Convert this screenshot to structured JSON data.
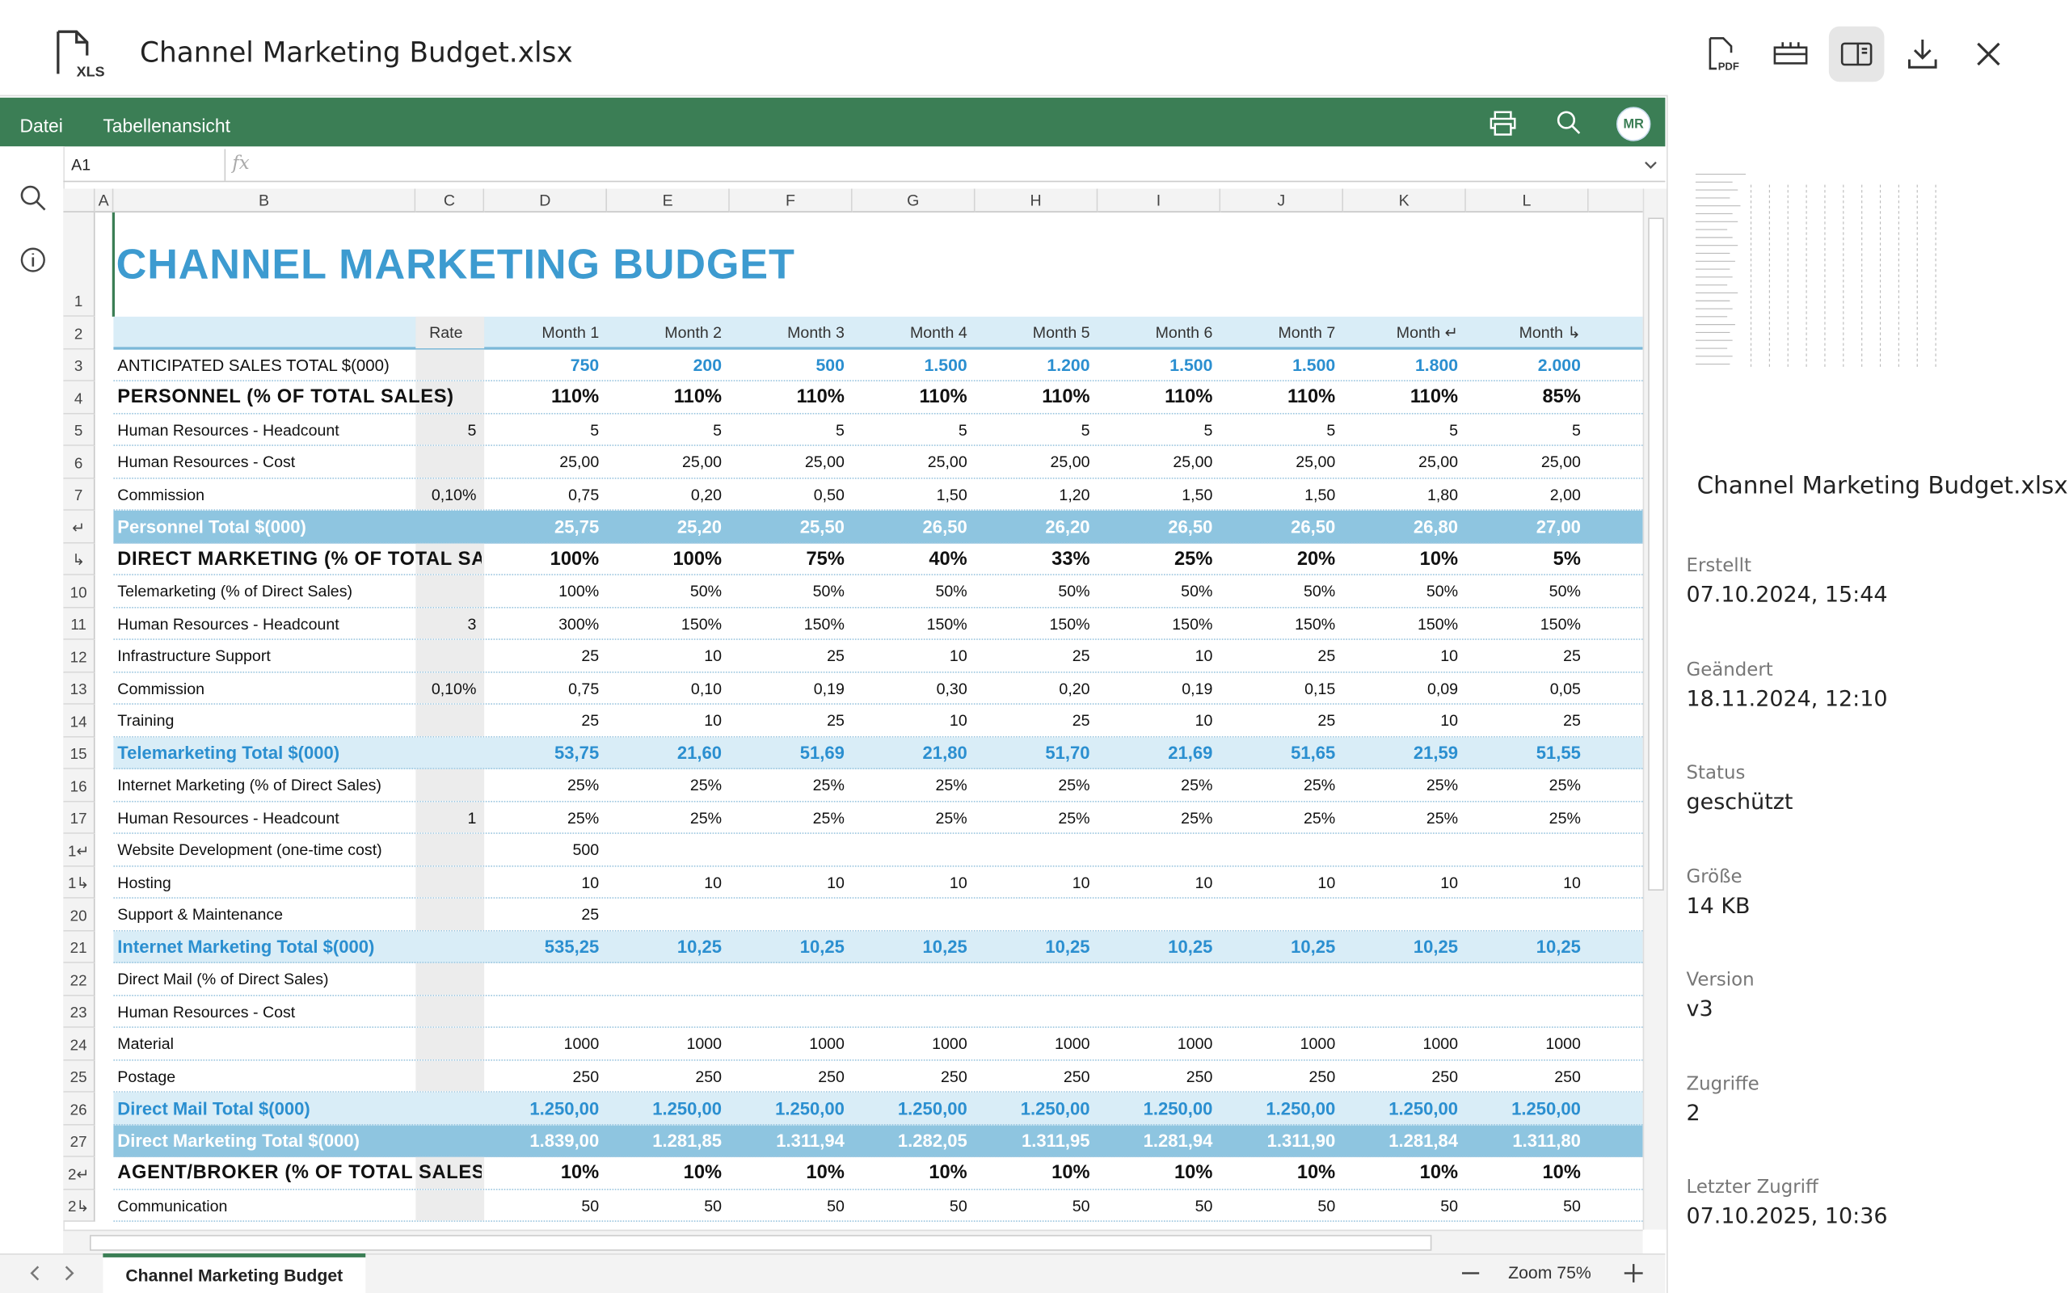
{
  "header": {
    "file_icon_label": "XLS",
    "file_name": "Channel Marketing Budget.xlsx",
    "pdf_label": "PDF"
  },
  "menu": [
    "Datei",
    "Tabellenansicht"
  ],
  "avatar": "MR",
  "formula_bar": {
    "name_box": "A1",
    "fx": "fx"
  },
  "sheet": {
    "columns": [
      "A",
      "B",
      "C",
      "D",
      "E",
      "F",
      "G",
      "H",
      "I",
      "J",
      "K",
      "L"
    ],
    "rows": [
      [
        "1",
        "CHANNEL MARKETING BUDGET",
        null,
        null,
        null,
        null,
        null,
        null,
        null,
        null,
        null,
        null
      ],
      [
        "2",
        null,
        "Rate",
        "Month 1",
        "Month 2",
        "Month 3",
        "Month 4",
        "Month 5",
        "Month 6",
        "Month 7",
        "Month ↵",
        "Month ↳"
      ],
      [
        "3",
        "ANTICIPATED SALES TOTAL $(000)",
        null,
        "750",
        "200",
        "500",
        "1.500",
        "1.200",
        "1.500",
        "1.500",
        "1.800",
        "2.000"
      ],
      [
        "4",
        "PERSONNEL (% OF TOTAL SALES)",
        null,
        "110%",
        "110%",
        "110%",
        "110%",
        "110%",
        "110%",
        "110%",
        "110%",
        "85%"
      ],
      [
        "5",
        "Human Resources - Headcount",
        "5",
        "5",
        "5",
        "5",
        "5",
        "5",
        "5",
        "5",
        "5",
        "5"
      ],
      [
        "6",
        "Human Resources - Cost",
        null,
        "25,00",
        "25,00",
        "25,00",
        "25,00",
        "25,00",
        "25,00",
        "25,00",
        "25,00",
        "25,00"
      ],
      [
        "7",
        "Commission",
        "0,10%",
        "0,75",
        "0,20",
        "0,50",
        "1,50",
        "1,20",
        "1,50",
        "1,50",
        "1,80",
        "2,00"
      ],
      [
        "↵",
        "Personnel Total $(000)",
        null,
        "25,75",
        "25,20",
        "25,50",
        "26,50",
        "26,20",
        "26,50",
        "26,50",
        "26,80",
        "27,00"
      ],
      [
        "↳",
        "DIRECT MARKETING (% OF TOTAL SA",
        null,
        "100%",
        "100%",
        "75%",
        "40%",
        "33%",
        "25%",
        "20%",
        "10%",
        "5%"
      ],
      [
        "10",
        "Telemarketing (% of Direct Sales)",
        null,
        "100%",
        "50%",
        "50%",
        "50%",
        "50%",
        "50%",
        "50%",
        "50%",
        "50%"
      ],
      [
        "11",
        "Human Resources - Headcount",
        "3",
        "300%",
        "150%",
        "150%",
        "150%",
        "150%",
        "150%",
        "150%",
        "150%",
        "150%"
      ],
      [
        "12",
        "Infrastructure Support",
        null,
        "25",
        "10",
        "25",
        "10",
        "25",
        "10",
        "25",
        "10",
        "25"
      ],
      [
        "13",
        "Commission",
        "0,10%",
        "0,75",
        "0,10",
        "0,19",
        "0,30",
        "0,20",
        "0,19",
        "0,15",
        "0,09",
        "0,05"
      ],
      [
        "14",
        "Training",
        null,
        "25",
        "10",
        "25",
        "10",
        "25",
        "10",
        "25",
        "10",
        "25"
      ],
      [
        "15",
        "Telemarketing Total $(000)",
        null,
        "53,75",
        "21,60",
        "51,69",
        "21,80",
        "51,70",
        "21,69",
        "51,65",
        "21,59",
        "51,55"
      ],
      [
        "16",
        "Internet Marketing (% of Direct Sales)",
        null,
        "25%",
        "25%",
        "25%",
        "25%",
        "25%",
        "25%",
        "25%",
        "25%",
        "25%"
      ],
      [
        "17",
        "Human Resources - Headcount",
        "1",
        "25%",
        "25%",
        "25%",
        "25%",
        "25%",
        "25%",
        "25%",
        "25%",
        "25%"
      ],
      [
        "1↵",
        "Website Development (one-time cost)",
        null,
        "500",
        null,
        null,
        null,
        null,
        null,
        null,
        null,
        null
      ],
      [
        "1↳",
        "Hosting",
        null,
        "10",
        "10",
        "10",
        "10",
        "10",
        "10",
        "10",
        "10",
        "10"
      ],
      [
        "20",
        "Support & Maintenance",
        null,
        "25",
        null,
        null,
        null,
        null,
        null,
        null,
        null,
        null
      ],
      [
        "21",
        "Internet Marketing Total $(000)",
        null,
        "535,25",
        "10,25",
        "10,25",
        "10,25",
        "10,25",
        "10,25",
        "10,25",
        "10,25",
        "10,25"
      ],
      [
        "22",
        "Direct Mail (% of Direct Sales)",
        null,
        null,
        null,
        null,
        null,
        null,
        null,
        null,
        null,
        null
      ],
      [
        "23",
        "Human Resources - Cost",
        null,
        null,
        null,
        null,
        null,
        null,
        null,
        null,
        null,
        null
      ],
      [
        "24",
        "Material",
        null,
        "1000",
        "1000",
        "1000",
        "1000",
        "1000",
        "1000",
        "1000",
        "1000",
        "1000"
      ],
      [
        "25",
        "Postage",
        null,
        "250",
        "250",
        "250",
        "250",
        "250",
        "250",
        "250",
        "250",
        "250"
      ],
      [
        "26",
        "Direct Mail Total $(000)",
        null,
        "1.250,00",
        "1.250,00",
        "1.250,00",
        "1.250,00",
        "1.250,00",
        "1.250,00",
        "1.250,00",
        "1.250,00",
        "1.250,00"
      ],
      [
        "27",
        "Direct Marketing Total $(000)",
        null,
        "1.839,00",
        "1.281,85",
        "1.311,94",
        "1.282,05",
        "1.311,95",
        "1.281,94",
        "1.311,90",
        "1.281,84",
        "1.311,80"
      ],
      [
        "2↵",
        "AGENT/BROKER (% OF TOTAL SALES",
        null,
        "10%",
        "10%",
        "10%",
        "10%",
        "10%",
        "10%",
        "10%",
        "10%",
        "10%"
      ],
      [
        "2↳",
        "Communication",
        null,
        "50",
        "50",
        "50",
        "50",
        "50",
        "50",
        "50",
        "50",
        "50"
      ]
    ]
  },
  "sheet_tab": "Channel Marketing Budget",
  "zoom": "Zoom 75%",
  "details": {
    "file_name": "Channel Marketing Budget.xlsx",
    "items": [
      {
        "label": "Erstellt",
        "value": "07.10.2024, 15:44"
      },
      {
        "label": "Geändert",
        "value": "18.11.2024, 12:10"
      },
      {
        "label": "Status",
        "value": "geschützt"
      },
      {
        "label": "Größe",
        "value": "14 KB"
      },
      {
        "label": "Version",
        "value": "v3"
      },
      {
        "label": "Zugriffe",
        "value": "2"
      },
      {
        "label": "Letzter Zugriff",
        "value": "07.10.2025, 10:36"
      }
    ]
  }
}
